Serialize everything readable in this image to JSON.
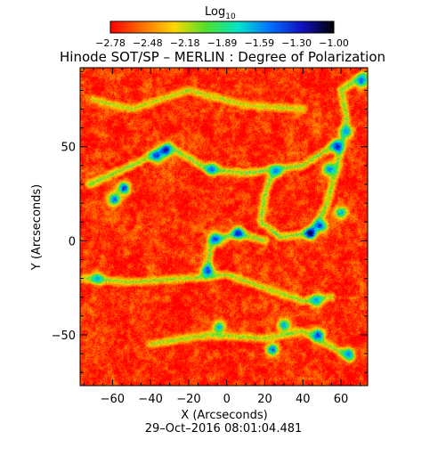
{
  "chart_data": {
    "type": "heatmap",
    "title": "Hinode SOT/SP – MERLIN : Degree of Polarization",
    "colorbar": {
      "label_main": "Log",
      "label_sub": "10",
      "tick_labels": [
        "−2.78",
        "−2.48",
        "−2.18",
        "−1.89",
        "−1.59",
        "−1.30",
        "−1.00"
      ],
      "range": [
        -2.78,
        -1.0
      ],
      "colormap_stops": [
        "#ff0000",
        "#ff7000",
        "#ffd700",
        "#4fe02a",
        "#00e5c8",
        "#0070ff",
        "#1010c0",
        "#000000"
      ]
    },
    "xlabel": "X (Arcseconds)",
    "ylabel": "Y (Arcseconds)",
    "xlim": [
      -77,
      74
    ],
    "ylim": [
      -77,
      92
    ],
    "x_ticks": [
      -60,
      -40,
      -20,
      0,
      20,
      40,
      60
    ],
    "x_tick_labels": [
      "−60",
      "−40",
      "−20",
      "0",
      "20",
      "40",
      "60"
    ],
    "y_ticks": [
      -50,
      0,
      50
    ],
    "y_tick_labels": [
      "−50",
      "0",
      "50"
    ],
    "timestamp": "29–Oct–2016 08:01:04.481",
    "field": {
      "background_level": -2.68,
      "noise_amplitude": 0.28,
      "strong_features": [
        {
          "x": -54,
          "y": 28,
          "level": -1.25
        },
        {
          "x": -59,
          "y": 22,
          "level": -1.35
        },
        {
          "x": -32,
          "y": 48,
          "level": -1.15
        },
        {
          "x": -37,
          "y": 45,
          "level": -1.3
        },
        {
          "x": -8,
          "y": 38,
          "level": -1.45
        },
        {
          "x": 26,
          "y": 37,
          "level": -1.5
        },
        {
          "x": 6,
          "y": 4,
          "level": -1.2
        },
        {
          "x": -6,
          "y": 1,
          "level": -1.35
        },
        {
          "x": -10,
          "y": -16,
          "level": -1.3
        },
        {
          "x": 44,
          "y": 4,
          "level": -1.02
        },
        {
          "x": 49,
          "y": 8,
          "level": -1.3
        },
        {
          "x": 58,
          "y": 50,
          "level": -1.2
        },
        {
          "x": 63,
          "y": 58,
          "level": -1.5
        },
        {
          "x": 54,
          "y": 38,
          "level": -1.45
        },
        {
          "x": 71,
          "y": 85,
          "level": -1.4
        },
        {
          "x": 48,
          "y": -50,
          "level": -1.25
        },
        {
          "x": 24,
          "y": -58,
          "level": -1.35
        },
        {
          "x": 30,
          "y": -45,
          "level": -1.5
        },
        {
          "x": 47,
          "y": -32,
          "level": -1.55
        },
        {
          "x": 64,
          "y": -60,
          "level": -1.5
        },
        {
          "x": -4,
          "y": -46,
          "level": -1.6
        },
        {
          "x": -68,
          "y": -20,
          "level": -1.6
        },
        {
          "x": 60,
          "y": 15,
          "level": -1.55
        }
      ],
      "network_lanes": [
        {
          "points": [
            [
              -72,
              30
            ],
            [
              -50,
              40
            ],
            [
              -30,
              50
            ],
            [
              -10,
              38
            ],
            [
              10,
              36
            ],
            [
              25,
              38
            ],
            [
              40,
              40
            ],
            [
              58,
              52
            ]
          ],
          "level": -2.05
        },
        {
          "points": [
            [
              25,
              38
            ],
            [
              20,
              25
            ],
            [
              18,
              10
            ],
            [
              28,
              2
            ],
            [
              44,
              4
            ]
          ],
          "level": -2.05
        },
        {
          "points": [
            [
              44,
              4
            ],
            [
              52,
              18
            ],
            [
              58,
              40
            ],
            [
              63,
              65
            ],
            [
              60,
              80
            ],
            [
              72,
              88
            ]
          ],
          "level": -2.05
        },
        {
          "points": [
            [
              -10,
              -15
            ],
            [
              -8,
              0
            ],
            [
              6,
              4
            ],
            [
              20,
              0
            ]
          ],
          "level": -2.05
        },
        {
          "points": [
            [
              -75,
              -20
            ],
            [
              -50,
              -22
            ],
            [
              -20,
              -20
            ],
            [
              0,
              -18
            ],
            [
              20,
              -25
            ],
            [
              40,
              -32
            ],
            [
              55,
              -30
            ]
          ],
          "level": -2.1
        },
        {
          "points": [
            [
              -40,
              -55
            ],
            [
              -10,
              -50
            ],
            [
              20,
              -52
            ],
            [
              40,
              -48
            ],
            [
              65,
              -62
            ]
          ],
          "level": -2.1
        },
        {
          "points": [
            [
              -70,
              75
            ],
            [
              -50,
              70
            ],
            [
              -20,
              80
            ],
            [
              10,
              72
            ],
            [
              40,
              70
            ]
          ],
          "level": -2.15
        }
      ]
    }
  }
}
